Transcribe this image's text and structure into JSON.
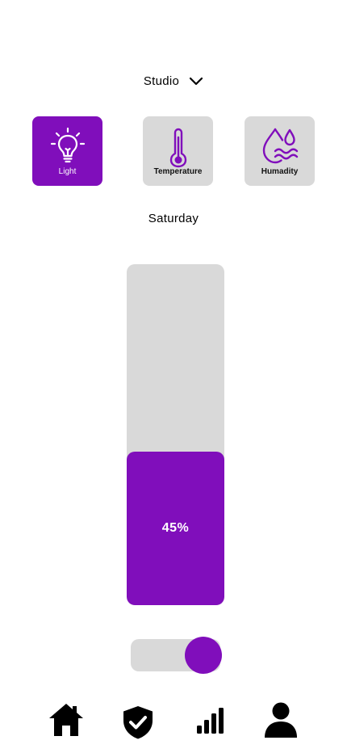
{
  "room": {
    "name": "Studio",
    "dropdown_icon": "chevron-down-icon"
  },
  "modes": [
    {
      "label": "Light",
      "icon": "lightbulb-icon",
      "active": true
    },
    {
      "label": "Temperature",
      "icon": "thermometer-icon",
      "active": false
    },
    {
      "label": "Humadity",
      "icon": "humidity-icon",
      "active": false
    }
  ],
  "day": "Saturday",
  "level": {
    "value": 45,
    "text": "45%"
  },
  "toggle": {
    "on": true
  },
  "nav": [
    {
      "icon": "home-icon"
    },
    {
      "icon": "shield-check-icon"
    },
    {
      "icon": "signal-bars-icon"
    },
    {
      "icon": "user-icon"
    }
  ],
  "colors": {
    "accent": "#800ebb",
    "tile_inactive": "#d9d9d9",
    "background": "#ffffff"
  }
}
